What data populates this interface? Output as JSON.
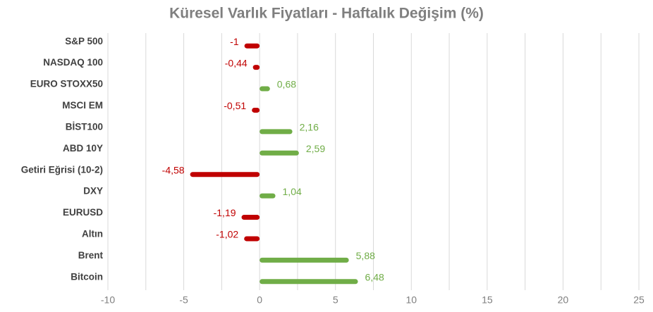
{
  "chart_data": {
    "type": "bar",
    "orientation": "horizontal",
    "title": "Küresel Varlık Fiyatları - Haftalık Değişim (%)",
    "categories": [
      "S&P 500",
      "NASDAQ 100",
      "EURO STOXX50",
      "MSCI EM",
      "BİST100",
      "ABD 10Y",
      "Getiri Eğrisi (10-2)",
      "DXY",
      "EURUSD",
      "Altın",
      "Brent",
      "Bitcoin"
    ],
    "values": [
      -1,
      -0.44,
      0.68,
      -0.51,
      2.16,
      2.59,
      -4.58,
      1.04,
      -1.19,
      -1.02,
      5.88,
      6.48
    ],
    "value_labels": [
      "-1",
      "-0,44",
      "0,68",
      "-0,51",
      "2,16",
      "2,59",
      "-4,58",
      "1,04",
      "-1,19",
      "-1,02",
      "5,88",
      "6,48"
    ],
    "positive_color": "#70ad47",
    "negative_color": "#c00000",
    "xlim": [
      -10,
      25
    ],
    "xticks": [
      -10,
      -5,
      0,
      5,
      10,
      15,
      20,
      25
    ],
    "minor_xticks": [
      -7.5,
      -2.5,
      2.5,
      7.5,
      12.5,
      17.5,
      22.5
    ],
    "grid": true
  }
}
